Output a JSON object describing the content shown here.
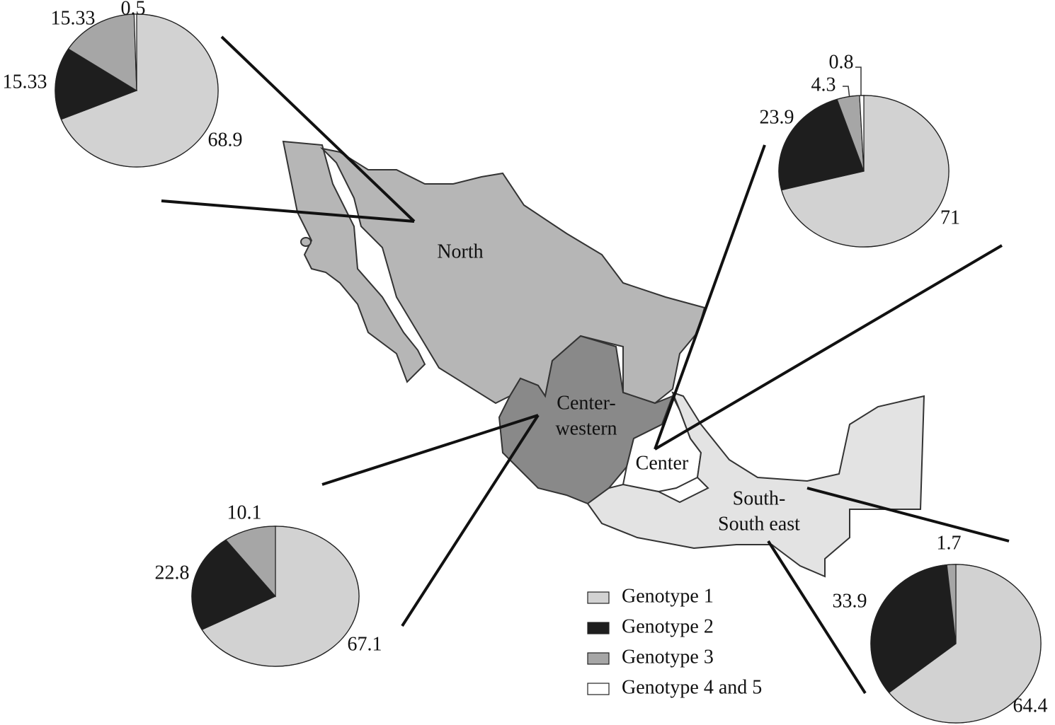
{
  "regions": [
    {
      "label": [
        "North"
      ]
    },
    {
      "label": [
        "Center-",
        "western"
      ]
    },
    {
      "label": [
        "Center"
      ]
    },
    {
      "label": [
        "South-",
        "South east"
      ]
    }
  ],
  "legend": {
    "labels": [
      "Genotype  1",
      "Genotype  2",
      "Genotype  3",
      "Genotype  4 and 5"
    ],
    "colors": [
      "#d2d2d2",
      "#1e1e1e",
      "#a6a6a6",
      "#ffffff"
    ]
  },
  "chart_data": [
    {
      "type": "pie",
      "values": [
        68.9,
        15.33,
        15.33,
        0.5
      ]
    },
    {
      "type": "pie",
      "values": [
        71,
        23.9,
        4.3,
        0.8
      ]
    },
    {
      "type": "pie",
      "values": [
        67.1,
        22.8,
        10.1
      ]
    },
    {
      "type": "pie",
      "values": [
        64.4,
        33.9,
        1.7
      ]
    }
  ]
}
